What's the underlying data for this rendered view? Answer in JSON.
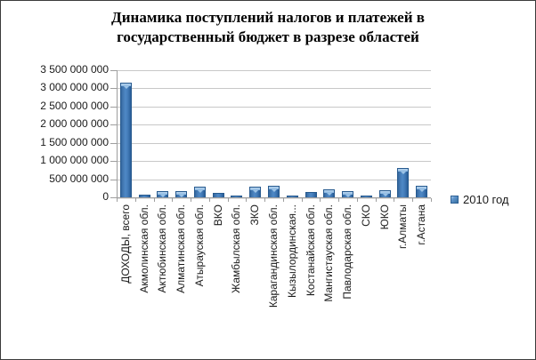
{
  "chart": {
    "title_lines": [
      "Динамика поступлений налогов и платежей в",
      "государственный бюджет в разрезе областей"
    ],
    "legend": {
      "label": "2010 год",
      "marker_color": "#4f81bd"
    }
  },
  "chart_data": {
    "type": "bar",
    "title": "Динамика поступлений налогов и платежей в государственный бюджет в разрезе областей",
    "categories": [
      "ДОХОДЫ, всего",
      "Акмолинская обл.",
      "Актюбинская обл.",
      "Алматинская обл.",
      "Атырауская обл.",
      "ВКО",
      "Жамбылская обл.",
      "ЗКО",
      "Карагандинская обл.",
      "Кызылординская...",
      "Костанайская обл.",
      "Мангистауская обл.",
      "Павлодарская обл.",
      "СКО",
      "ЮКО",
      "г.Алматы",
      "г.Астана"
    ],
    "series": [
      {
        "name": "2010 год",
        "values": [
          3150000000,
          70000000,
          170000000,
          165000000,
          305000000,
          120000000,
          60000000,
          300000000,
          310000000,
          45000000,
          135000000,
          230000000,
          165000000,
          55000000,
          190000000,
          800000000,
          310000000
        ]
      }
    ],
    "xlabel": "",
    "ylabel": "",
    "ylim": [
      0,
      3500000000
    ],
    "ytick_step": 500000000,
    "ytick_labels": [
      "0",
      "500 000 000",
      "1 000 000 000",
      "1 500 000 000",
      "2 000 000 000",
      "2 500 000 000",
      "3 000 000 000",
      "3 500 000 000"
    ],
    "grid": true,
    "legend_position": "right",
    "colors": {
      "bar_fill": "#4178b6",
      "bar_edge": "#275a8f",
      "bar_highlight": "#9cc3e6",
      "gridline": "#c8c8c8",
      "axis": "#9e9e9e",
      "text": "#1a1a1a"
    }
  }
}
